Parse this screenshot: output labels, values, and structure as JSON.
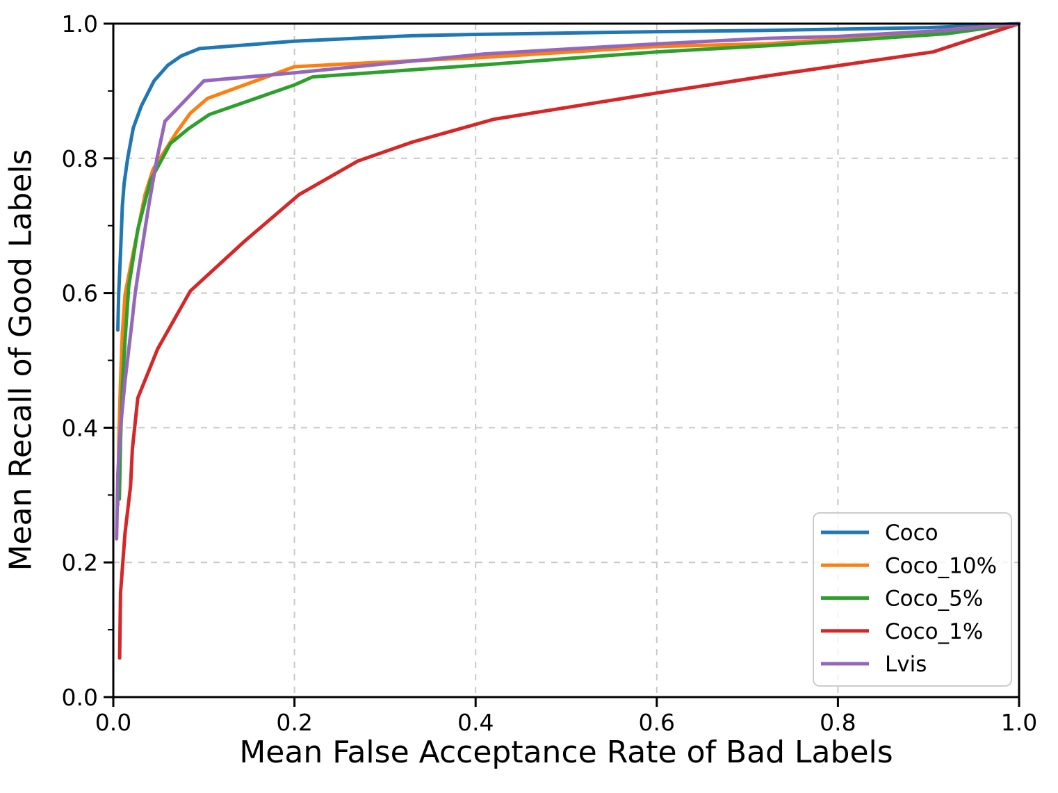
{
  "chart_data": {
    "type": "line",
    "title": "",
    "xlabel": "Mean False Acceptance Rate of Bad Labels",
    "ylabel": "Mean Recall of Good Labels",
    "xlim": [
      0.0,
      1.0
    ],
    "ylim": [
      0.0,
      1.0
    ],
    "xticks": [
      0.0,
      0.2,
      0.4,
      0.6,
      0.8,
      1.0
    ],
    "xtick_labels": [
      "0.0",
      "0.2",
      "0.4",
      "0.6",
      "0.8",
      "1.0"
    ],
    "yticks": [
      0.0,
      0.2,
      0.4,
      0.6,
      0.8,
      1.0
    ],
    "ytick_labels": [
      "0.0",
      "0.2",
      "0.4",
      "0.6",
      "0.8",
      "1.0"
    ],
    "y_minor_ticks": [
      0.1,
      0.3,
      0.5,
      0.7,
      0.9
    ],
    "grid": "dashed",
    "grid_color": "#c8c8c8",
    "legend_position": "lower right",
    "legend_labels": [
      "Coco",
      "Coco_10%",
      "Coco_5%",
      "Coco_1%",
      "Lvis"
    ],
    "series": [
      {
        "name": "Coco",
        "color": "#1f77b4",
        "points": [
          [
            0.005,
            0.545
          ],
          [
            0.006,
            0.6
          ],
          [
            0.008,
            0.66
          ],
          [
            0.01,
            0.729
          ],
          [
            0.012,
            0.763
          ],
          [
            0.016,
            0.801
          ],
          [
            0.022,
            0.845
          ],
          [
            0.031,
            0.878
          ],
          [
            0.045,
            0.915
          ],
          [
            0.06,
            0.938
          ],
          [
            0.075,
            0.952
          ],
          [
            0.095,
            0.963
          ],
          [
            0.2,
            0.974
          ],
          [
            0.33,
            0.982
          ],
          [
            0.4,
            0.984
          ],
          [
            0.6,
            0.988
          ],
          [
            0.72,
            0.99
          ],
          [
            0.9,
            0.994
          ],
          [
            1.0,
            1.0
          ]
        ]
      },
      {
        "name": "Coco_10%",
        "color": "#ff7f0e",
        "points": [
          [
            0.005,
            0.285
          ],
          [
            0.006,
            0.38
          ],
          [
            0.008,
            0.47
          ],
          [
            0.01,
            0.54
          ],
          [
            0.013,
            0.598
          ],
          [
            0.022,
            0.66
          ],
          [
            0.035,
            0.746
          ],
          [
            0.044,
            0.784
          ],
          [
            0.07,
            0.839
          ],
          [
            0.085,
            0.867
          ],
          [
            0.104,
            0.889
          ],
          [
            0.2,
            0.936
          ],
          [
            0.27,
            0.941
          ],
          [
            0.41,
            0.95
          ],
          [
            0.6,
            0.966
          ],
          [
            0.72,
            0.97
          ],
          [
            0.8,
            0.977
          ],
          [
            0.9,
            0.988
          ],
          [
            1.0,
            1.0
          ]
        ]
      },
      {
        "name": "Coco_5%",
        "color": "#2ca02c",
        "points": [
          [
            0.0067,
            0.294
          ],
          [
            0.008,
            0.38
          ],
          [
            0.01,
            0.46
          ],
          [
            0.013,
            0.53
          ],
          [
            0.017,
            0.61
          ],
          [
            0.027,
            0.694
          ],
          [
            0.041,
            0.767
          ],
          [
            0.063,
            0.822
          ],
          [
            0.083,
            0.844
          ],
          [
            0.106,
            0.865
          ],
          [
            0.2,
            0.909
          ],
          [
            0.22,
            0.921
          ],
          [
            0.41,
            0.939
          ],
          [
            0.6,
            0.958
          ],
          [
            0.72,
            0.967
          ],
          [
            0.8,
            0.974
          ],
          [
            0.92,
            0.985
          ],
          [
            1.0,
            1.0
          ]
        ]
      },
      {
        "name": "Coco_1%",
        "color": "#d62728",
        "points": [
          [
            0.007,
            0.058
          ],
          [
            0.008,
            0.155
          ],
          [
            0.013,
            0.244
          ],
          [
            0.019,
            0.313
          ],
          [
            0.021,
            0.368
          ],
          [
            0.027,
            0.444
          ],
          [
            0.049,
            0.517
          ],
          [
            0.085,
            0.603
          ],
          [
            0.145,
            0.677
          ],
          [
            0.205,
            0.746
          ],
          [
            0.27,
            0.796
          ],
          [
            0.33,
            0.824
          ],
          [
            0.42,
            0.858
          ],
          [
            0.6,
            0.897
          ],
          [
            0.72,
            0.922
          ],
          [
            0.905,
            0.958
          ],
          [
            1.0,
            1.0
          ]
        ]
      },
      {
        "name": "Lvis",
        "color": "#9467bd",
        "points": [
          [
            0.0036,
            0.235
          ],
          [
            0.005,
            0.33
          ],
          [
            0.008,
            0.4
          ],
          [
            0.013,
            0.47
          ],
          [
            0.02,
            0.55
          ],
          [
            0.024,
            0.598
          ],
          [
            0.027,
            0.626
          ],
          [
            0.039,
            0.729
          ],
          [
            0.048,
            0.798
          ],
          [
            0.057,
            0.855
          ],
          [
            0.1,
            0.915
          ],
          [
            0.2,
            0.927
          ],
          [
            0.41,
            0.955
          ],
          [
            0.6,
            0.97
          ],
          [
            0.72,
            0.978
          ],
          [
            0.8,
            0.981
          ],
          [
            0.92,
            0.99
          ],
          [
            1.0,
            1.0
          ]
        ]
      }
    ]
  }
}
